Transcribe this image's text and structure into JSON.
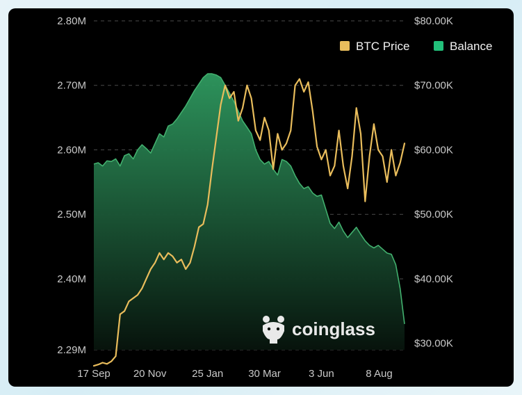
{
  "colors": {
    "price": "#e9bd5c",
    "balance_line": "#42b06e",
    "balance_fill_top": "#2f9a60",
    "balance_fill_bottom": "#07130c",
    "legend_balance": "#22c07a",
    "grid": "#4a4a4a",
    "background": "#000000"
  },
  "watermark": {
    "text": "coinglass",
    "icon": "coinglass-frog-icon"
  },
  "chart_data": {
    "type": "line",
    "x_tick_labels": [
      "17 Sep",
      "20 Nov",
      "25 Jan",
      "30 Mar",
      "3 Jun",
      "8 Aug"
    ],
    "y_left_tick_labels": [
      "2.29M",
      "2.40M",
      "2.50M",
      "2.60M",
      "2.70M",
      "2.80M"
    ],
    "y_right_tick_labels": [
      "$30.00K",
      "$40.00K",
      "$50.00K",
      "$60.00K",
      "$70.00K",
      "$80.00K"
    ],
    "y_left_ticks": [
      2.29,
      2.4,
      2.5,
      2.6,
      2.7,
      2.8
    ],
    "y_right_ticks": [
      30000,
      40000,
      50000,
      60000,
      70000,
      80000
    ],
    "ylim_left": [
      2.29,
      2.8
    ],
    "ylim_right": [
      25000,
      80000
    ],
    "xlim": [
      0,
      355
    ],
    "x_tick_days": [
      0,
      64,
      130,
      195,
      260,
      326
    ],
    "grid": true,
    "legend_position": "top-right",
    "series": [
      {
        "name": "BTC Price",
        "axis": "right",
        "days": [
          0,
          5,
          10,
          15,
          20,
          25,
          30,
          35,
          40,
          45,
          50,
          55,
          60,
          65,
          70,
          75,
          80,
          85,
          90,
          95,
          100,
          105,
          110,
          115,
          120,
          125,
          130,
          135,
          140,
          145,
          150,
          155,
          160,
          165,
          170,
          175,
          180,
          185,
          190,
          195,
          200,
          205,
          210,
          215,
          220,
          225,
          230,
          235,
          240,
          245,
          250,
          255,
          260,
          265,
          270,
          275,
          280,
          285,
          290,
          295,
          300,
          305,
          310,
          315,
          320,
          325,
          330,
          335,
          340,
          345,
          350,
          355
        ],
        "values": [
          26500,
          26700,
          27000,
          26800,
          27200,
          28000,
          34500,
          35000,
          36500,
          37000,
          37500,
          38500,
          40000,
          41500,
          42500,
          44000,
          43000,
          44000,
          43500,
          42500,
          43000,
          41500,
          42500,
          45000,
          48000,
          48500,
          51500,
          57000,
          62000,
          67000,
          70000,
          68000,
          69000,
          64500,
          66500,
          70000,
          68000,
          63000,
          61500,
          65000,
          63000,
          57000,
          62500,
          60000,
          61000,
          63000,
          70000,
          71000,
          69000,
          70500,
          66000,
          60500,
          58500,
          60000,
          56000,
          57500,
          63000,
          57500,
          54000,
          59000,
          66500,
          62500,
          52000,
          59000,
          64000,
          60000,
          59000,
          55000,
          60000,
          56000,
          58000,
          61000
        ]
      },
      {
        "name": "Balance",
        "axis": "left",
        "days": [
          0,
          5,
          10,
          15,
          20,
          25,
          30,
          35,
          40,
          45,
          50,
          55,
          60,
          65,
          70,
          75,
          80,
          85,
          90,
          95,
          100,
          105,
          110,
          115,
          120,
          125,
          130,
          135,
          140,
          145,
          150,
          155,
          160,
          165,
          170,
          175,
          180,
          185,
          190,
          195,
          200,
          205,
          210,
          215,
          220,
          225,
          230,
          235,
          240,
          245,
          250,
          255,
          260,
          265,
          270,
          275,
          280,
          285,
          290,
          295,
          300,
          305,
          310,
          315,
          320,
          325,
          330,
          335,
          340,
          345,
          350,
          355
        ],
        "values": [
          2.578,
          2.58,
          2.575,
          2.583,
          2.582,
          2.586,
          2.575,
          2.591,
          2.594,
          2.586,
          2.6,
          2.608,
          2.602,
          2.595,
          2.61,
          2.625,
          2.62,
          2.637,
          2.64,
          2.648,
          2.658,
          2.668,
          2.68,
          2.692,
          2.702,
          2.712,
          2.718,
          2.718,
          2.716,
          2.712,
          2.7,
          2.688,
          2.675,
          2.66,
          2.645,
          2.635,
          2.625,
          2.6,
          2.585,
          2.578,
          2.582,
          2.57,
          2.561,
          2.585,
          2.582,
          2.575,
          2.56,
          2.548,
          2.54,
          2.543,
          2.533,
          2.528,
          2.53,
          2.508,
          2.486,
          2.478,
          2.488,
          2.474,
          2.464,
          2.472,
          2.48,
          2.469,
          2.459,
          2.452,
          2.448,
          2.452,
          2.446,
          2.44,
          2.438,
          2.422,
          2.385,
          2.33
        ]
      }
    ]
  }
}
